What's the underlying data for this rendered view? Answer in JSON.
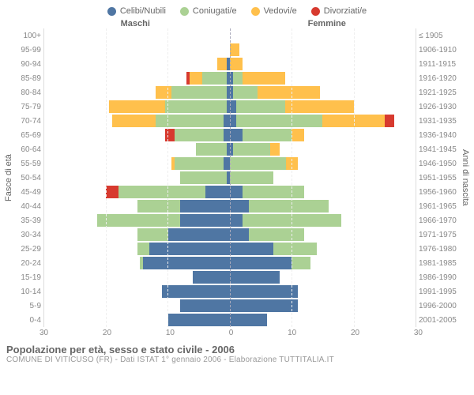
{
  "legend": [
    {
      "label": "Celibi/Nubili",
      "color": "#4f76a3"
    },
    {
      "label": "Coniugati/e",
      "color": "#abd194"
    },
    {
      "label": "Vedovi/e",
      "color": "#ffc04c"
    },
    {
      "label": "Divorziati/e",
      "color": "#d73a2f"
    }
  ],
  "headers": {
    "male": "Maschi",
    "female": "Femmine"
  },
  "y_left_title": "Fasce di età",
  "y_right_title": "Anni di nascita",
  "x_ticks": [
    "30",
    "20",
    "10",
    "0",
    "10",
    "20",
    "30"
  ],
  "x_max": 30,
  "colors": {
    "single": "#4f76a3",
    "married": "#abd194",
    "widowed": "#ffc04c",
    "divorced": "#d73a2f",
    "grid": "#eeeeee",
    "text": "#888888"
  },
  "footer": {
    "title": "Popolazione per età, sesso e stato civile - 2006",
    "subtitle": "COMUNE DI VITICUSO (FR) - Dati ISTAT 1° gennaio 2006 - Elaborazione TUTTITALIA.IT"
  },
  "rows": [
    {
      "age": "100+",
      "birth": "≤ 1905",
      "m": {
        "s": 0,
        "c": 0,
        "v": 0,
        "d": 0
      },
      "f": {
        "s": 0,
        "c": 0,
        "v": 0,
        "d": 0
      }
    },
    {
      "age": "95-99",
      "birth": "1906-1910",
      "m": {
        "s": 0,
        "c": 0,
        "v": 0,
        "d": 0
      },
      "f": {
        "s": 0,
        "c": 0,
        "v": 1.5,
        "d": 0
      }
    },
    {
      "age": "90-94",
      "birth": "1911-1915",
      "m": {
        "s": 0.5,
        "c": 0,
        "v": 1.5,
        "d": 0
      },
      "f": {
        "s": 0,
        "c": 0,
        "v": 2,
        "d": 0
      }
    },
    {
      "age": "85-89",
      "birth": "1916-1920",
      "m": {
        "s": 0.5,
        "c": 4,
        "v": 2,
        "d": 0.5
      },
      "f": {
        "s": 0.5,
        "c": 1.5,
        "v": 7,
        "d": 0
      }
    },
    {
      "age": "80-84",
      "birth": "1921-1925",
      "m": {
        "s": 0.5,
        "c": 9,
        "v": 2.5,
        "d": 0
      },
      "f": {
        "s": 0.5,
        "c": 4,
        "v": 10,
        "d": 0
      }
    },
    {
      "age": "75-79",
      "birth": "1926-1930",
      "m": {
        "s": 0.5,
        "c": 10,
        "v": 9,
        "d": 0
      },
      "f": {
        "s": 1,
        "c": 8,
        "v": 11,
        "d": 0
      }
    },
    {
      "age": "70-74",
      "birth": "1931-1935",
      "m": {
        "s": 1,
        "c": 11,
        "v": 7,
        "d": 0
      },
      "f": {
        "s": 1,
        "c": 14,
        "v": 10,
        "d": 1.5
      }
    },
    {
      "age": "65-69",
      "birth": "1936-1940",
      "m": {
        "s": 1,
        "c": 8,
        "v": 0,
        "d": 1.5
      },
      "f": {
        "s": 2,
        "c": 8,
        "v": 2,
        "d": 0
      }
    },
    {
      "age": "60-64",
      "birth": "1941-1945",
      "m": {
        "s": 0.5,
        "c": 5,
        "v": 0,
        "d": 0
      },
      "f": {
        "s": 0.5,
        "c": 6,
        "v": 1.5,
        "d": 0
      }
    },
    {
      "age": "55-59",
      "birth": "1946-1950",
      "m": {
        "s": 1,
        "c": 8,
        "v": 0.5,
        "d": 0
      },
      "f": {
        "s": 0,
        "c": 9,
        "v": 2,
        "d": 0
      }
    },
    {
      "age": "50-54",
      "birth": "1951-1955",
      "m": {
        "s": 0.5,
        "c": 7.5,
        "v": 0,
        "d": 0
      },
      "f": {
        "s": 0,
        "c": 7,
        "v": 0,
        "d": 0
      }
    },
    {
      "age": "45-49",
      "birth": "1956-1960",
      "m": {
        "s": 4,
        "c": 14,
        "v": 0,
        "d": 2
      },
      "f": {
        "s": 2,
        "c": 10,
        "v": 0,
        "d": 0
      }
    },
    {
      "age": "40-44",
      "birth": "1961-1965",
      "m": {
        "s": 8,
        "c": 7,
        "v": 0,
        "d": 0
      },
      "f": {
        "s": 3,
        "c": 13,
        "v": 0,
        "d": 0
      }
    },
    {
      "age": "35-39",
      "birth": "1966-1970",
      "m": {
        "s": 8,
        "c": 13.5,
        "v": 0,
        "d": 0
      },
      "f": {
        "s": 2,
        "c": 16,
        "v": 0,
        "d": 0
      }
    },
    {
      "age": "30-34",
      "birth": "1971-1975",
      "m": {
        "s": 10,
        "c": 5,
        "v": 0,
        "d": 0
      },
      "f": {
        "s": 3,
        "c": 9,
        "v": 0,
        "d": 0
      }
    },
    {
      "age": "25-29",
      "birth": "1976-1980",
      "m": {
        "s": 13,
        "c": 2,
        "v": 0,
        "d": 0
      },
      "f": {
        "s": 7,
        "c": 7,
        "v": 0,
        "d": 0
      }
    },
    {
      "age": "20-24",
      "birth": "1981-1985",
      "m": {
        "s": 14,
        "c": 0.5,
        "v": 0,
        "d": 0
      },
      "f": {
        "s": 10,
        "c": 3,
        "v": 0,
        "d": 0
      }
    },
    {
      "age": "15-19",
      "birth": "1986-1990",
      "m": {
        "s": 6,
        "c": 0,
        "v": 0,
        "d": 0
      },
      "f": {
        "s": 8,
        "c": 0,
        "v": 0,
        "d": 0
      }
    },
    {
      "age": "10-14",
      "birth": "1991-1995",
      "m": {
        "s": 11,
        "c": 0,
        "v": 0,
        "d": 0
      },
      "f": {
        "s": 11,
        "c": 0,
        "v": 0,
        "d": 0
      }
    },
    {
      "age": "5-9",
      "birth": "1996-2000",
      "m": {
        "s": 8,
        "c": 0,
        "v": 0,
        "d": 0
      },
      "f": {
        "s": 11,
        "c": 0,
        "v": 0,
        "d": 0
      }
    },
    {
      "age": "0-4",
      "birth": "2001-2005",
      "m": {
        "s": 10,
        "c": 0,
        "v": 0,
        "d": 0
      },
      "f": {
        "s": 6,
        "c": 0,
        "v": 0,
        "d": 0
      }
    }
  ]
}
